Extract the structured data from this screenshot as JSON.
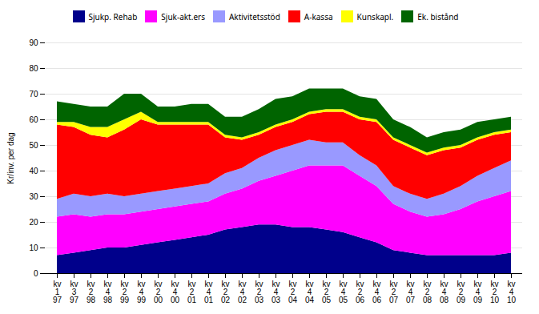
{
  "chart_data": {
    "type": "area",
    "stacked": true,
    "categories": [
      "kv\n1\n97",
      "kv\n3\n97",
      "kv\n2\n98",
      "kv\n4\n98",
      "kv\n2\n99",
      "kv\n4\n99",
      "kv\n2\n00",
      "kv\n4\n00",
      "kv\n2\n01",
      "kv\n4\n01",
      "kv\n2\n02",
      "kv\n4\n02",
      "kv\n2\n03",
      "kv\n4\n03",
      "kv\n2\n04",
      "kv\n4\n04",
      "kv\n2\n05",
      "kv\n4\n05",
      "kv\n2\n06",
      "kv\n4\n06",
      "kv\n2\n07",
      "kv\n4\n07",
      "kv\n2\n08",
      "kv\n4\n08",
      "kv\n2\n09",
      "kv\n4\n09",
      "kv\n2\n10",
      "kv\n4\n10"
    ],
    "series": [
      {
        "name": "Sjukp. Rehab",
        "color": "#00008B",
        "values": [
          7,
          8,
          9,
          10,
          10,
          11,
          12,
          13,
          14,
          15,
          17,
          18,
          19,
          19,
          18,
          18,
          17,
          16,
          14,
          12,
          9,
          8,
          7,
          7,
          7,
          7,
          7,
          8
        ]
      },
      {
        "name": "Sjuk-akt.ers",
        "color": "#FF00FF",
        "values": [
          15,
          15,
          13,
          13,
          13,
          13,
          13,
          13,
          13,
          13,
          14,
          15,
          17,
          19,
          22,
          24,
          25,
          26,
          24,
          22,
          18,
          16,
          15,
          16,
          18,
          21,
          23,
          24
        ]
      },
      {
        "name": "Aktivitetsstöd",
        "color": "#9999FF",
        "values": [
          7,
          8,
          8,
          8,
          7,
          7,
          7,
          7,
          7,
          7,
          8,
          8,
          9,
          10,
          10,
          10,
          9,
          9,
          8,
          8,
          7,
          7,
          7,
          8,
          9,
          10,
          11,
          12
        ]
      },
      {
        "name": "A-kassa",
        "color": "#FF0000",
        "values": [
          29,
          26,
          24,
          22,
          26,
          29,
          26,
          25,
          24,
          23,
          14,
          11,
          9,
          9,
          9,
          10,
          12,
          12,
          14,
          17,
          18,
          18,
          17,
          17,
          15,
          14,
          13,
          11
        ]
      },
      {
        "name": "Kunskapl.",
        "color": "#FFFF00",
        "values": [
          1,
          2,
          3,
          4,
          4,
          3,
          1,
          1,
          1,
          1,
          1,
          1,
          1,
          1,
          1,
          1,
          1,
          1,
          1,
          1,
          1,
          1,
          1,
          1,
          1,
          1,
          1,
          1
        ]
      },
      {
        "name": "Ek. bistånd",
        "color": "#006400",
        "values": [
          8,
          7,
          8,
          8,
          10,
          7,
          6,
          6,
          7,
          7,
          7,
          8,
          9,
          10,
          9,
          9,
          8,
          8,
          8,
          8,
          7,
          7,
          6,
          6,
          6,
          6,
          5,
          5
        ]
      }
    ],
    "ylabel": "Kr/inv. per dag",
    "ylim": [
      0,
      90
    ],
    "yticks": [
      0,
      10,
      20,
      30,
      40,
      50,
      60,
      70,
      80,
      90
    ],
    "grid": true,
    "legend": "top"
  }
}
